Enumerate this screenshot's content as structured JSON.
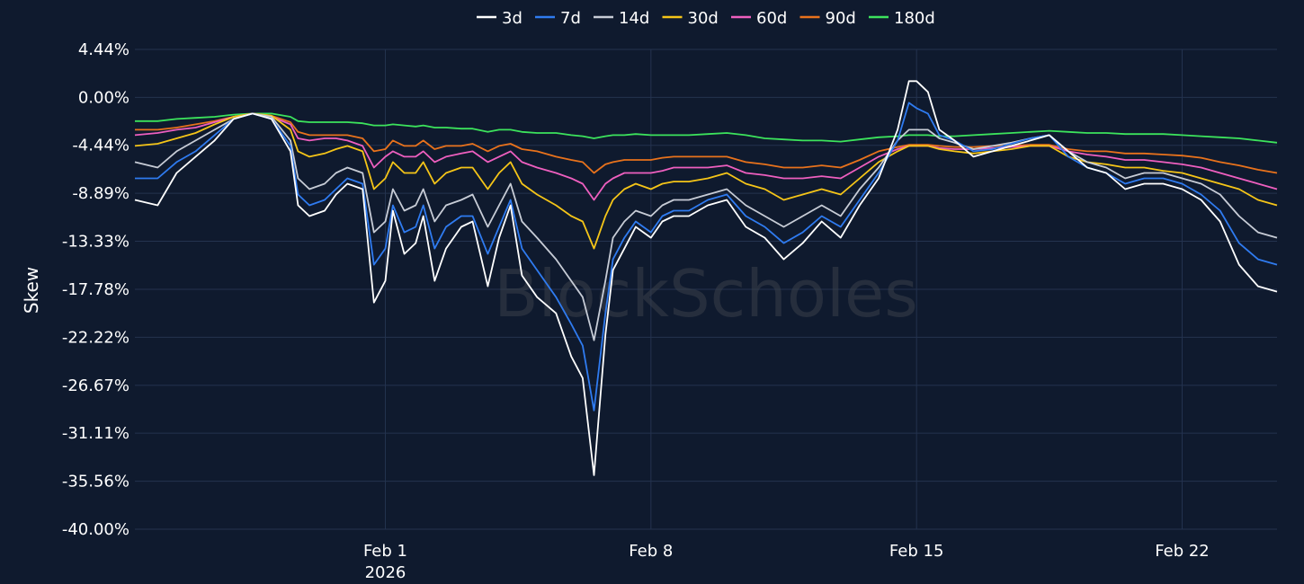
{
  "chart_data": {
    "type": "line",
    "ylabel": "Skew",
    "watermark": "BlockScholes",
    "y_ticks": [
      "4.44%",
      "0.00%",
      "-4.44%",
      "-8.89%",
      "-13.33%",
      "-17.78%",
      "-22.22%",
      "-26.67%",
      "-31.11%",
      "-35.56%",
      "-40.00%"
    ],
    "ylim": [
      -40.0,
      4.44
    ],
    "x_ticks": [
      {
        "day": 0,
        "label": "Feb 1",
        "sublabel": "2026"
      },
      {
        "day": 7,
        "label": "Feb 8",
        "sublabel": ""
      },
      {
        "day": 14,
        "label": "Feb 15",
        "sublabel": ""
      },
      {
        "day": 21,
        "label": "Feb 22",
        "sublabel": ""
      }
    ],
    "xlim": [
      -6.6,
      23.5
    ],
    "grid": true,
    "legend_position": "top-center",
    "colors": {
      "background": "#0f1a2e",
      "grid": "#24334f"
    },
    "x": [
      -6.6,
      -6.0,
      -5.5,
      -5.0,
      -4.5,
      -4.0,
      -3.5,
      -3.0,
      -2.5,
      -2.3,
      -2.0,
      -1.6,
      -1.3,
      -1.0,
      -0.6,
      -0.3,
      0.0,
      0.2,
      0.5,
      0.8,
      1.0,
      1.3,
      1.6,
      2.0,
      2.3,
      2.7,
      3.0,
      3.3,
      3.6,
      4.0,
      4.5,
      4.9,
      5.2,
      5.5,
      5.8,
      6.0,
      6.3,
      6.6,
      7.0,
      7.3,
      7.6,
      8.0,
      8.5,
      9.0,
      9.5,
      10.0,
      10.5,
      11.0,
      11.5,
      12.0,
      12.5,
      13.0,
      13.5,
      13.8,
      14.0,
      14.3,
      14.6,
      15.0,
      15.5,
      16.0,
      16.5,
      17.0,
      17.5,
      18.0,
      18.5,
      19.0,
      19.5,
      20.0,
      20.5,
      21.0,
      21.5,
      22.0,
      22.5,
      23.0,
      23.5
    ],
    "series": [
      {
        "name": "3d",
        "color": "#ffffff",
        "values": [
          -9.5,
          -10.0,
          -7.0,
          -5.5,
          -4.0,
          -2.0,
          -1.5,
          -2.0,
          -5.0,
          -10.0,
          -11.0,
          -10.5,
          -9.0,
          -8.0,
          -8.5,
          -19.0,
          -17.0,
          -10.5,
          -14.5,
          -13.5,
          -11.0,
          -17.0,
          -14.0,
          -12.0,
          -11.5,
          -17.5,
          -13.0,
          -10.0,
          -16.5,
          -18.5,
          -20.0,
          -24.0,
          -26.0,
          -35.0,
          -22.0,
          -16.0,
          -14.0,
          -12.0,
          -13.0,
          -11.5,
          -11.0,
          -11.0,
          -10.0,
          -9.5,
          -12.0,
          -13.0,
          -15.0,
          -13.5,
          -11.5,
          -13.0,
          -10.0,
          -7.5,
          -3.0,
          1.5,
          1.5,
          0.5,
          -3.0,
          -4.0,
          -5.5,
          -5.0,
          -4.5,
          -4.0,
          -3.5,
          -5.0,
          -6.5,
          -7.0,
          -8.5,
          -8.0,
          -8.0,
          -8.5,
          -9.5,
          -11.5,
          -15.5,
          -17.5,
          -18.0
        ]
      },
      {
        "name": "7d",
        "color": "#2f7bf0",
        "values": [
          -7.5,
          -7.5,
          -6.0,
          -5.0,
          -3.5,
          -2.0,
          -1.5,
          -2.0,
          -4.5,
          -9.0,
          -10.0,
          -9.5,
          -8.5,
          -7.5,
          -8.0,
          -15.5,
          -14.0,
          -10.0,
          -12.5,
          -12.0,
          -10.0,
          -14.0,
          -12.0,
          -11.0,
          -11.0,
          -14.5,
          -12.0,
          -9.5,
          -14.0,
          -16.0,
          -18.5,
          -21.0,
          -23.0,
          -29.0,
          -20.0,
          -15.0,
          -13.0,
          -11.5,
          -12.5,
          -11.0,
          -10.5,
          -10.5,
          -9.5,
          -9.0,
          -11.0,
          -12.0,
          -13.5,
          -12.5,
          -11.0,
          -12.0,
          -9.5,
          -7.0,
          -4.0,
          -0.5,
          -1.0,
          -1.5,
          -3.5,
          -4.0,
          -5.0,
          -4.8,
          -4.3,
          -3.8,
          -3.5,
          -5.5,
          -6.5,
          -7.0,
          -8.0,
          -7.5,
          -7.5,
          -8.0,
          -9.0,
          -10.5,
          -13.5,
          -15.0,
          -15.5
        ]
      },
      {
        "name": "14d",
        "color": "#c7ccd6",
        "values": [
          -6.0,
          -6.5,
          -5.0,
          -4.0,
          -3.0,
          -2.0,
          -1.5,
          -1.8,
          -4.0,
          -7.5,
          -8.5,
          -8.0,
          -7.0,
          -6.5,
          -7.0,
          -12.5,
          -11.5,
          -8.5,
          -10.5,
          -10.0,
          -8.5,
          -11.5,
          -10.0,
          -9.5,
          -9.0,
          -12.0,
          -10.0,
          -8.0,
          -11.5,
          -13.0,
          -15.0,
          -17.0,
          -18.5,
          -22.5,
          -17.0,
          -13.0,
          -11.5,
          -10.5,
          -11.0,
          -10.0,
          -9.5,
          -9.5,
          -9.0,
          -8.5,
          -10.0,
          -11.0,
          -12.0,
          -11.0,
          -10.0,
          -11.0,
          -8.5,
          -6.5,
          -4.0,
          -3.0,
          -3.0,
          -3.0,
          -3.8,
          -4.2,
          -4.8,
          -4.5,
          -4.2,
          -3.8,
          -3.5,
          -5.0,
          -6.0,
          -6.5,
          -7.5,
          -7.0,
          -7.0,
          -7.5,
          -8.0,
          -9.0,
          -11.0,
          -12.5,
          -13.0
        ]
      },
      {
        "name": "30d",
        "color": "#f5c518",
        "values": [
          -4.5,
          -4.3,
          -3.8,
          -3.3,
          -2.5,
          -1.8,
          -1.5,
          -1.7,
          -3.0,
          -5.0,
          -5.5,
          -5.2,
          -4.8,
          -4.5,
          -5.0,
          -8.5,
          -7.5,
          -6.0,
          -7.0,
          -7.0,
          -6.0,
          -8.0,
          -7.0,
          -6.5,
          -6.5,
          -8.5,
          -7.0,
          -6.0,
          -8.0,
          -9.0,
          -10.0,
          -11.0,
          -11.5,
          -14.0,
          -11.0,
          -9.5,
          -8.5,
          -8.0,
          -8.5,
          -8.0,
          -7.8,
          -7.8,
          -7.5,
          -7.0,
          -8.0,
          -8.5,
          -9.5,
          -9.0,
          -8.5,
          -9.0,
          -7.5,
          -6.0,
          -5.0,
          -4.5,
          -4.5,
          -4.5,
          -4.8,
          -5.0,
          -5.2,
          -5.0,
          -4.8,
          -4.5,
          -4.5,
          -5.5,
          -6.0,
          -6.2,
          -6.5,
          -6.5,
          -6.8,
          -7.0,
          -7.5,
          -8.0,
          -8.5,
          -9.5,
          -10.0
        ]
      },
      {
        "name": "60d",
        "color": "#ee5fbf",
        "values": [
          -3.5,
          -3.3,
          -3.0,
          -2.8,
          -2.3,
          -1.8,
          -1.5,
          -1.8,
          -2.5,
          -3.8,
          -4.0,
          -3.8,
          -3.8,
          -4.0,
          -4.5,
          -6.5,
          -5.5,
          -5.0,
          -5.5,
          -5.5,
          -5.0,
          -6.0,
          -5.5,
          -5.2,
          -5.0,
          -6.0,
          -5.5,
          -5.0,
          -6.0,
          -6.5,
          -7.0,
          -7.5,
          -8.0,
          -9.5,
          -8.0,
          -7.5,
          -7.0,
          -7.0,
          -7.0,
          -6.8,
          -6.5,
          -6.5,
          -6.5,
          -6.3,
          -7.0,
          -7.2,
          -7.5,
          -7.5,
          -7.3,
          -7.5,
          -6.5,
          -5.5,
          -4.8,
          -4.5,
          -4.5,
          -4.5,
          -4.7,
          -4.8,
          -4.8,
          -4.7,
          -4.6,
          -4.5,
          -4.5,
          -5.0,
          -5.3,
          -5.5,
          -5.8,
          -5.8,
          -6.0,
          -6.2,
          -6.5,
          -7.0,
          -7.5,
          -8.0,
          -8.5
        ]
      },
      {
        "name": "90d",
        "color": "#e8721c",
        "values": [
          -3.0,
          -3.0,
          -2.8,
          -2.5,
          -2.2,
          -1.8,
          -1.5,
          -1.7,
          -2.3,
          -3.2,
          -3.5,
          -3.5,
          -3.5,
          -3.5,
          -3.8,
          -5.0,
          -4.8,
          -4.0,
          -4.5,
          -4.5,
          -4.0,
          -4.8,
          -4.5,
          -4.5,
          -4.3,
          -5.0,
          -4.5,
          -4.3,
          -4.8,
          -5.0,
          -5.5,
          -5.8,
          -6.0,
          -7.0,
          -6.2,
          -6.0,
          -5.8,
          -5.8,
          -5.8,
          -5.6,
          -5.5,
          -5.5,
          -5.5,
          -5.5,
          -6.0,
          -6.2,
          -6.5,
          -6.5,
          -6.3,
          -6.5,
          -5.8,
          -5.0,
          -4.6,
          -4.4,
          -4.4,
          -4.4,
          -4.5,
          -4.6,
          -4.6,
          -4.5,
          -4.5,
          -4.4,
          -4.4,
          -4.8,
          -5.0,
          -5.0,
          -5.2,
          -5.2,
          -5.3,
          -5.4,
          -5.6,
          -6.0,
          -6.3,
          -6.7,
          -7.0
        ]
      },
      {
        "name": "180d",
        "color": "#3ce35c",
        "values": [
          -2.2,
          -2.2,
          -2.0,
          -1.9,
          -1.8,
          -1.6,
          -1.5,
          -1.5,
          -1.8,
          -2.2,
          -2.3,
          -2.3,
          -2.3,
          -2.3,
          -2.4,
          -2.6,
          -2.6,
          -2.5,
          -2.6,
          -2.7,
          -2.6,
          -2.8,
          -2.8,
          -2.9,
          -2.9,
          -3.2,
          -3.0,
          -3.0,
          -3.2,
          -3.3,
          -3.3,
          -3.5,
          -3.6,
          -3.8,
          -3.6,
          -3.5,
          -3.5,
          -3.4,
          -3.5,
          -3.5,
          -3.5,
          -3.5,
          -3.4,
          -3.3,
          -3.5,
          -3.8,
          -3.9,
          -4.0,
          -4.0,
          -4.1,
          -3.9,
          -3.7,
          -3.6,
          -3.5,
          -3.5,
          -3.5,
          -3.6,
          -3.6,
          -3.5,
          -3.4,
          -3.3,
          -3.2,
          -3.1,
          -3.2,
          -3.3,
          -3.3,
          -3.4,
          -3.4,
          -3.4,
          -3.5,
          -3.6,
          -3.7,
          -3.8,
          -4.0,
          -4.2
        ]
      }
    ]
  }
}
